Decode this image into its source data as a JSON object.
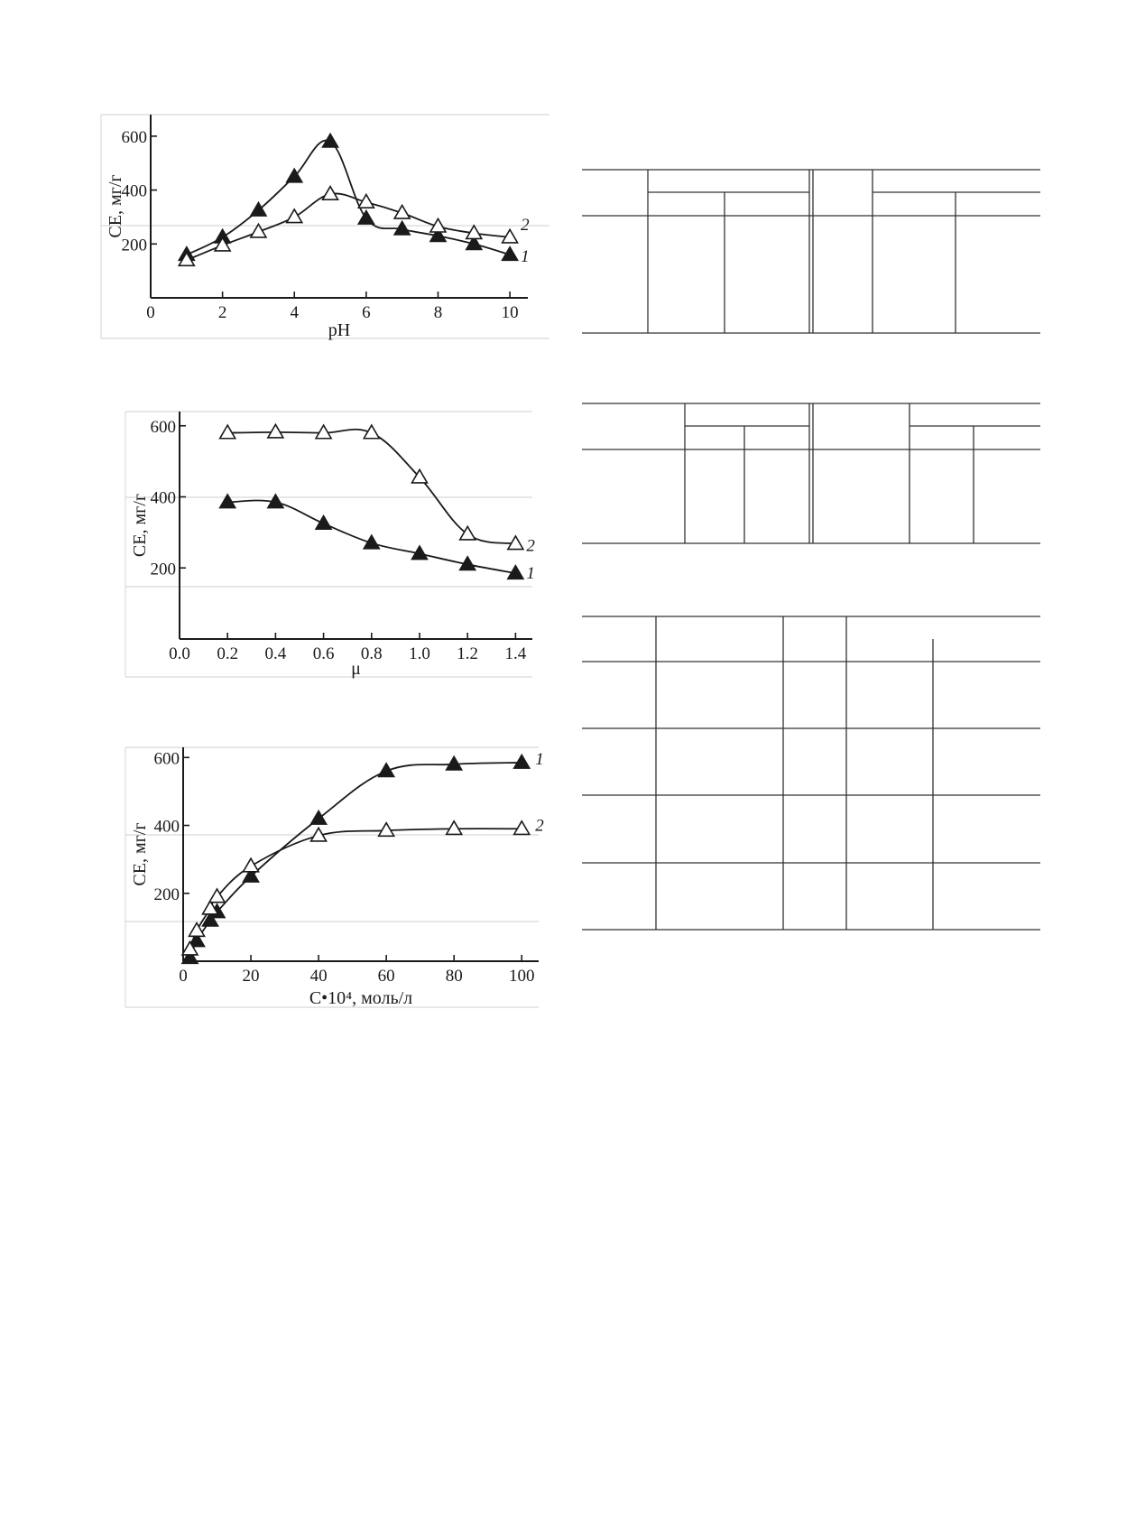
{
  "chart_data": [
    {
      "type": "line",
      "xlabel": "pH",
      "ylabel": "СЕ, мг/г",
      "xlim": [
        0,
        10.5
      ],
      "ylim": [
        0,
        680
      ],
      "xticks": [
        "0",
        "2",
        "4",
        "6",
        "8",
        "10"
      ],
      "yticks": [
        "200",
        "400",
        "600"
      ],
      "series": [
        {
          "name": "1",
          "marker": "filled-triangle",
          "x": [
            1,
            2,
            3,
            4,
            5,
            6,
            7,
            8,
            9,
            10
          ],
          "values": [
            160,
            225,
            325,
            450,
            580,
            295,
            255,
            230,
            200,
            160
          ]
        },
        {
          "name": "2",
          "marker": "open-triangle",
          "x": [
            1,
            2,
            3,
            4,
            5,
            6,
            7,
            8,
            9,
            10
          ],
          "values": [
            140,
            195,
            245,
            300,
            385,
            355,
            315,
            265,
            240,
            225
          ]
        }
      ]
    },
    {
      "type": "line",
      "xlabel": "μ",
      "ylabel": "СЕ, мг/г",
      "xlim": [
        0,
        1.47
      ],
      "ylim": [
        0,
        640
      ],
      "xticks": [
        "0.0",
        "0.2",
        "0.4",
        "0.6",
        "0.8",
        "1.0",
        "1.2",
        "1.4"
      ],
      "yticks": [
        "200",
        "400",
        "600"
      ],
      "series": [
        {
          "name": "1",
          "marker": "filled-triangle",
          "x": [
            0.2,
            0.4,
            0.6,
            0.8,
            1.0,
            1.2,
            1.4
          ],
          "values": [
            385,
            385,
            325,
            270,
            240,
            210,
            185
          ]
        },
        {
          "name": "2",
          "marker": "open-triangle",
          "x": [
            0.2,
            0.4,
            0.6,
            0.8,
            1.0,
            1.2,
            1.4
          ],
          "values": [
            580,
            582,
            580,
            580,
            455,
            295,
            268
          ]
        }
      ]
    },
    {
      "type": "line",
      "xlabel": "C•10⁴, моль/л",
      "ylabel": "СЕ, мг/г",
      "xlim": [
        0,
        105
      ],
      "ylim": [
        0,
        630
      ],
      "xticks": [
        "0",
        "20",
        "40",
        "60",
        "80",
        "100"
      ],
      "yticks": [
        "200",
        "400",
        "600"
      ],
      "series": [
        {
          "name": "1",
          "marker": "filled-triangle",
          "x": [
            2,
            4,
            8,
            10,
            20,
            40,
            60,
            80,
            100
          ],
          "values": [
            10,
            60,
            120,
            145,
            250,
            420,
            560,
            580,
            585
          ]
        },
        {
          "name": "2",
          "marker": "open-triangle",
          "x": [
            2,
            4,
            8,
            10,
            20,
            40,
            60,
            80,
            100
          ],
          "values": [
            35,
            90,
            155,
            190,
            280,
            370,
            385,
            390,
            390
          ]
        }
      ]
    }
  ]
}
